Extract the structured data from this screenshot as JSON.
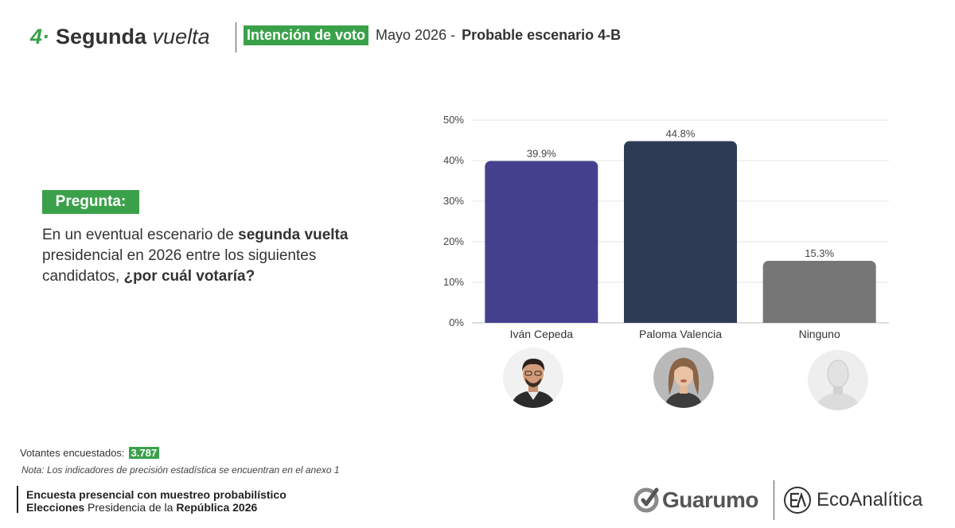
{
  "header": {
    "section_number": "4·",
    "title_bold": "Segunda",
    "title_italic": "vuelta",
    "tag": "Intención de voto",
    "period": "Mayo  2026 -",
    "scenario": "Probable escenario 4-B"
  },
  "question": {
    "tag": "Pregunta:",
    "text_1": "En un eventual escenario de ",
    "text_bold_1": "segunda vuelta",
    "text_2": " presidencial en 2026 entre los siguientes candidatos, ",
    "text_bold_2": "¿por cuál votaría?"
  },
  "chart_data": {
    "type": "bar",
    "categories": [
      "Iván Cepeda",
      "Paloma Valencia",
      "Ninguno"
    ],
    "values": [
      39.9,
      44.8,
      15.3
    ],
    "value_labels": [
      "39.9%",
      "44.8%",
      "15.3%"
    ],
    "colors": [
      "#45418f",
      "#2d3b55",
      "#767676"
    ],
    "ylim": [
      0,
      50
    ],
    "yticks": [
      "0%",
      "10%",
      "20%",
      "30%",
      "40%",
      "50%"
    ],
    "grid": true,
    "legend": false,
    "title": "",
    "xlabel": "",
    "ylabel": ""
  },
  "avatars": [
    {
      "icon": "ivan-cepeda-photo"
    },
    {
      "icon": "paloma-valencia-photo"
    },
    {
      "icon": "ninguno-mannequin-icon"
    }
  ],
  "footer": {
    "sample_label": "Votantes encuestados:",
    "sample_value": "3.787",
    "note": "Nota: Los indicadores de precisión estadística se encuentran en el anexo 1",
    "line1": "Encuesta presencial con muestreo probabilístico",
    "line2_bold_1": "Elecciones",
    "line2_regular": " Presidencia de la ",
    "line2_bold_2": "República 2026"
  },
  "logos": {
    "guarumo": "Guarumo",
    "ecoanalitica": "EcoAnalítica"
  },
  "colors": {
    "accent_green": "#3aa14a"
  }
}
